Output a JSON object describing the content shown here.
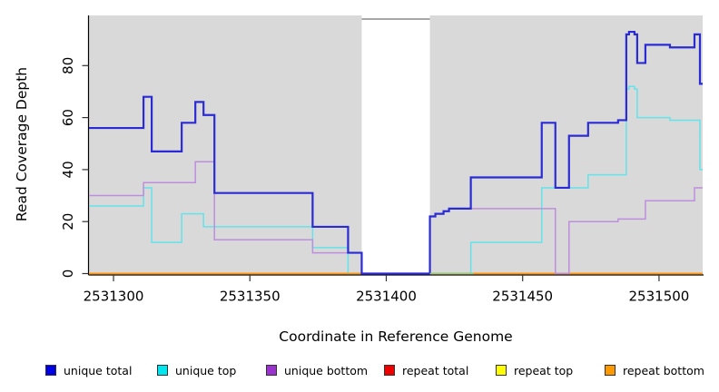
{
  "figure": {
    "xlabel": "Coordinate in Reference Genome",
    "ylabel": "Read Coverage Depth"
  },
  "legend": {
    "position": "bottom",
    "items": [
      {
        "label": "unique total",
        "swatch_color": "#0000e6"
      },
      {
        "label": "unique top",
        "swatch_color": "#00e5ee"
      },
      {
        "label": "unique bottom",
        "swatch_color": "#9a32cd"
      },
      {
        "label": "repeat total",
        "swatch_color": "#ee0000"
      },
      {
        "label": "repeat top",
        "swatch_color": "#ffff00"
      },
      {
        "label": "repeat bottom",
        "swatch_color": "#ff9900"
      }
    ]
  },
  "chart_data": {
    "type": "line",
    "subtype": "step-coverage-plot",
    "title": "",
    "xlabel": "Coordinate in Reference Genome",
    "ylabel": "Read Coverage Depth",
    "xlim": [
      2531291,
      2531516
    ],
    "ylim": [
      0,
      99.3
    ],
    "x_ticks": [
      2531300,
      2531350,
      2531400,
      2531450,
      2531500
    ],
    "y_ticks": [
      0,
      20,
      40,
      60,
      80
    ],
    "grid": false,
    "plot_bg_color": "#d9d9d9",
    "masked_region": {
      "from": 2531391,
      "to": 2531416,
      "fill": "#ffffff",
      "cap_color": "#8a8a8a"
    },
    "overlap_segment": {
      "from": 2531416,
      "to": 2531432,
      "value": 0,
      "color": "#8fd08f",
      "note": "cyan-over-orange blend visible at zero line"
    },
    "draw_order": [
      3,
      4,
      1,
      5,
      2,
      0
    ],
    "series": [
      {
        "name": "unique-total",
        "label": "unique total",
        "color": "#2b2bd5",
        "lw": 2.2,
        "steps": [
          [
            2531291,
            56
          ],
          [
            2531311,
            68
          ],
          [
            2531314,
            47
          ],
          [
            2531325,
            58
          ],
          [
            2531330,
            66
          ],
          [
            2531333,
            61
          ],
          [
            2531337,
            31
          ],
          [
            2531373,
            18
          ],
          [
            2531386,
            8
          ],
          [
            2531391,
            0
          ],
          [
            2531416,
            22
          ],
          [
            2531418,
            23
          ],
          [
            2531421,
            24
          ],
          [
            2531423,
            25
          ],
          [
            2531431,
            37
          ],
          [
            2531457,
            58
          ],
          [
            2531462,
            33
          ],
          [
            2531467,
            53
          ],
          [
            2531474,
            58
          ],
          [
            2531485,
            59
          ],
          [
            2531488,
            92
          ],
          [
            2531489,
            93
          ],
          [
            2531491,
            92
          ],
          [
            2531492,
            81
          ],
          [
            2531495,
            88
          ],
          [
            2531504,
            87
          ],
          [
            2531513,
            92
          ],
          [
            2531515,
            73
          ]
        ]
      },
      {
        "name": "unique-top",
        "label": "unique top",
        "color": "#63e3ea",
        "lw": 1.5,
        "steps": [
          [
            2531291,
            26
          ],
          [
            2531311,
            33
          ],
          [
            2531314,
            12
          ],
          [
            2531325,
            23
          ],
          [
            2531333,
            18
          ],
          [
            2531373,
            10
          ],
          [
            2531386,
            0
          ],
          [
            2531431,
            12
          ],
          [
            2531457,
            33
          ],
          [
            2531474,
            38
          ],
          [
            2531488,
            71
          ],
          [
            2531489,
            72
          ],
          [
            2531491,
            71
          ],
          [
            2531492,
            60
          ],
          [
            2531504,
            59
          ],
          [
            2531515,
            40
          ]
        ]
      },
      {
        "name": "unique-bottom",
        "label": "unique bottom",
        "color": "#bd8edd",
        "lw": 1.5,
        "steps": [
          [
            2531291,
            30
          ],
          [
            2531311,
            35
          ],
          [
            2531330,
            43
          ],
          [
            2531337,
            13
          ],
          [
            2531373,
            8
          ],
          [
            2531391,
            0
          ],
          [
            2531416,
            22
          ],
          [
            2531418,
            23
          ],
          [
            2531421,
            24
          ],
          [
            2531423,
            25
          ],
          [
            2531462,
            0
          ],
          [
            2531467,
            20
          ],
          [
            2531485,
            21
          ],
          [
            2531495,
            28
          ],
          [
            2531513,
            33
          ]
        ]
      },
      {
        "name": "repeat-total",
        "label": "repeat total",
        "color": "#dd0000",
        "lw": 1.4,
        "steps": [
          [
            2531291,
            0
          ]
        ]
      },
      {
        "name": "repeat-top",
        "label": "repeat top",
        "color": "#f2f200",
        "lw": 1.4,
        "steps": [
          [
            2531291,
            0
          ]
        ]
      },
      {
        "name": "repeat-bottom",
        "label": "repeat bottom",
        "color": "#ff9414",
        "lw": 1.8,
        "steps": [
          [
            2531291,
            0
          ]
        ]
      }
    ]
  }
}
